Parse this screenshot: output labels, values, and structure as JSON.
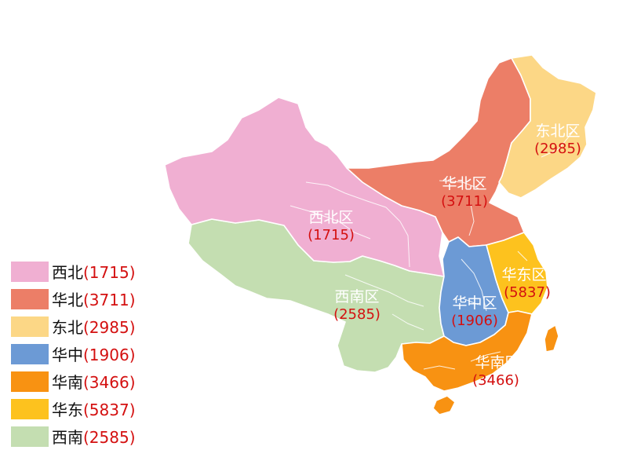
{
  "regions": [
    {
      "id": "northwest",
      "name": "西北区",
      "value": "(1715)",
      "color": "#f0afd2"
    },
    {
      "id": "north",
      "name": "华北区",
      "value": "(3711)",
      "color": "#ec7e67"
    },
    {
      "id": "northeast",
      "name": "东北区",
      "value": "(2985)",
      "color": "#fcd786"
    },
    {
      "id": "central",
      "name": "华中区",
      "value": "(1906)",
      "color": "#6c9ad5"
    },
    {
      "id": "south",
      "name": "华南区",
      "value": "(3466)",
      "color": "#f89212"
    },
    {
      "id": "east",
      "name": "华东区",
      "value": "(5837)",
      "color": "#fdc21e"
    },
    {
      "id": "southwest",
      "name": "西南区",
      "value": "(2585)",
      "color": "#c4deb1"
    }
  ],
  "legend": [
    {
      "name": "西北",
      "value": "(1715)",
      "color": "#f0afd2"
    },
    {
      "name": "华北",
      "value": "(3711)",
      "color": "#ec7e67"
    },
    {
      "name": "东北",
      "value": "(2985)",
      "color": "#fcd786"
    },
    {
      "name": "华中",
      "value": "(1906)",
      "color": "#6c9ad5"
    },
    {
      "name": "华南",
      "value": "(3466)",
      "color": "#f89212"
    },
    {
      "name": "华东",
      "value": "(5837)",
      "color": "#fdc21e"
    },
    {
      "name": "西南",
      "value": "(2585)",
      "color": "#c4deb1"
    }
  ]
}
